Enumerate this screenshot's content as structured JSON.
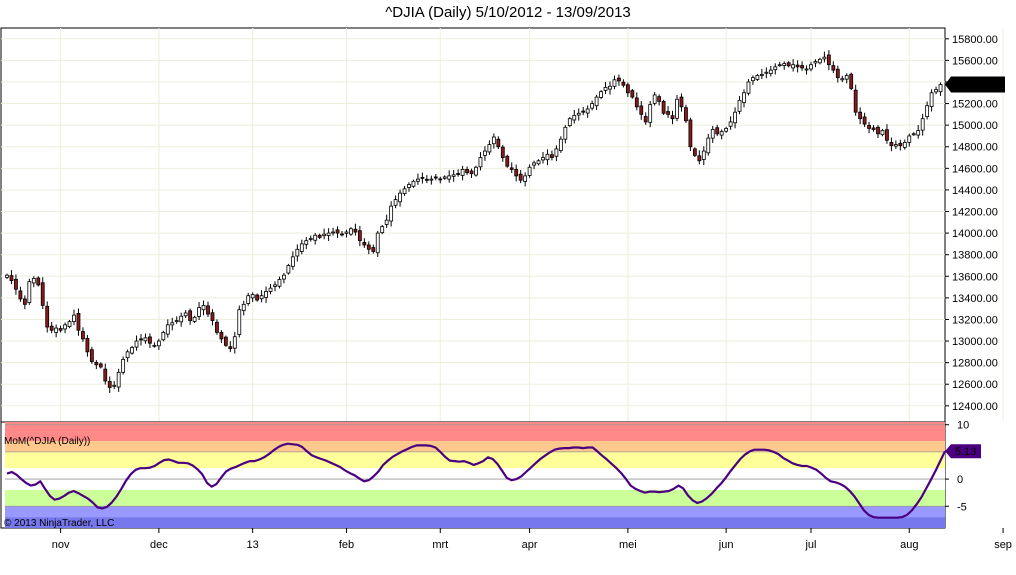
{
  "title": "^DJIA (Daily)  5/10/2012 - 13/09/2013",
  "chart_data": [
    {
      "type": "candlestick",
      "name": "^DJIA (Daily)",
      "y_ticks": [
        "15800.00",
        "15600.00",
        "15400.00",
        "15200.00",
        "15000.00",
        "14800.00",
        "14600.00",
        "14400.00",
        "14200.00",
        "14000.00",
        "13800.00",
        "13600.00",
        "13400.00",
        "13200.00",
        "13000.00",
        "12800.00",
        "12600.00",
        "12400.00"
      ],
      "ylim": [
        12250,
        15900
      ],
      "last_value_label": "15376.06",
      "last_value": 15376.06,
      "close_approx": [
        13610,
        13560,
        13480,
        13390,
        13340,
        13550,
        13580,
        13520,
        13330,
        13130,
        13100,
        13120,
        13100,
        13150,
        13180,
        13240,
        13100,
        13020,
        12900,
        12810,
        12780,
        12760,
        12630,
        12570,
        12590,
        12710,
        12830,
        12900,
        12940,
        13000,
        13010,
        13030,
        12980,
        12960,
        13000,
        13080,
        13150,
        13170,
        13190,
        13230,
        13260,
        13190,
        13220,
        13310,
        13330,
        13250,
        13190,
        13080,
        13020,
        12960,
        12930,
        13040,
        13290,
        13340,
        13420,
        13430,
        13380,
        13420,
        13460,
        13490,
        13520,
        13570,
        13610,
        13700,
        13780,
        13850,
        13900,
        13930,
        13950,
        13980,
        13960,
        13990,
        14000,
        14010,
        14000,
        13990,
        14010,
        14040,
        14010,
        13930,
        13890,
        13850,
        13830,
        14000,
        14060,
        14120,
        14250,
        14310,
        14370,
        14410,
        14450,
        14480,
        14500,
        14510,
        14490,
        14500,
        14510,
        14500,
        14520,
        14530,
        14540,
        14550,
        14590,
        14560,
        14550,
        14610,
        14700,
        14760,
        14820,
        14890,
        14800,
        14700,
        14620,
        14590,
        14530,
        14490,
        14530,
        14610,
        14650,
        14670,
        14700,
        14730,
        14700,
        14780,
        14870,
        14980,
        15060,
        15090,
        15110,
        15120,
        15150,
        15200,
        15260,
        15310,
        15350,
        15360,
        15420,
        15410,
        15370,
        15300,
        15260,
        15170,
        15100,
        15030,
        15190,
        15280,
        15220,
        15110,
        15100,
        15060,
        15240,
        15170,
        15040,
        14800,
        14720,
        14670,
        14760,
        14880,
        14960,
        14920,
        14940,
        14970,
        15030,
        15120,
        15230,
        15300,
        15400,
        15440,
        15460,
        15470,
        15490,
        15510,
        15540,
        15560,
        15570,
        15550,
        15560,
        15540,
        15530,
        15520,
        15560,
        15590,
        15610,
        15630,
        15560,
        15510,
        15440,
        15430,
        15460,
        15340,
        15120,
        15060,
        15010,
        14970,
        14960,
        14920,
        14950,
        14860,
        14810,
        14820,
        14810,
        14840,
        14900,
        14920,
        14950,
        15060,
        15180,
        15300,
        15330,
        15376
      ]
    },
    {
      "type": "line",
      "name": "MoM(^DJIA (Daily))",
      "legend_label": "MoM(^DJIA (Daily))",
      "y_ticks": [
        "10",
        "5",
        "0",
        "-5"
      ],
      "ylim": [
        -9,
        10.5
      ],
      "last_value_label": "5.13",
      "last_value": 5.13,
      "zones": [
        {
          "from": 7,
          "to": 10.5,
          "color": "#ff8888"
        },
        {
          "from": 5,
          "to": 7,
          "color": "#ffc88c"
        },
        {
          "from": 2,
          "to": 5,
          "color": "#ffff99"
        },
        {
          "from": -2,
          "to": 2,
          "color": "#ffffff"
        },
        {
          "from": -5,
          "to": -2,
          "color": "#ccff99"
        },
        {
          "from": -7,
          "to": -5,
          "color": "#9999ff"
        },
        {
          "from": -9,
          "to": -7,
          "color": "#7777ee"
        }
      ],
      "values": [
        1,
        1.3,
        0.8,
        0,
        -0.7,
        -1.2,
        -1,
        -0.4,
        -1.8,
        -3.1,
        -3.8,
        -3.6,
        -3.1,
        -2.5,
        -2.2,
        -2.6,
        -3.1,
        -3.6,
        -4.3,
        -5.2,
        -5.4,
        -5.1,
        -4.3,
        -3.2,
        -1.8,
        -0.3,
        0.9,
        1.7,
        2,
        2,
        2.1,
        2.4,
        3,
        3.5,
        3.6,
        3.3,
        3,
        3,
        2.9,
        2.5,
        1.8,
        0.9,
        -0.7,
        -1.4,
        -0.9,
        0.3,
        1.4,
        1.9,
        2.2,
        2.6,
        3,
        3.3,
        3.3,
        3.6,
        4,
        4.6,
        5.3,
        5.9,
        6.3,
        6.5,
        6.4,
        6.3,
        5.9,
        5.1,
        4.4,
        4,
        3.7,
        3.4,
        3,
        2.6,
        2.2,
        1.6,
        1.1,
        0.7,
        0.1,
        -0.4,
        -0.2,
        0.5,
        1.4,
        2.6,
        3.4,
        4.1,
        4.6,
        5.1,
        5.5,
        5.9,
        6.2,
        6.2,
        6.2,
        6.1,
        5.8,
        5,
        4.1,
        3.4,
        3.3,
        3.2,
        3.3,
        3,
        2.6,
        2.9,
        3.3,
        4,
        3.7,
        2.8,
        1.5,
        0.2,
        -0.2,
        0,
        0.5,
        1.3,
        2.1,
        2.9,
        3.7,
        4.3,
        4.9,
        5.4,
        5.6,
        5.7,
        5.7,
        5.8,
        5.8,
        5.7,
        5.8,
        5.8,
        5.1,
        4.3,
        3.6,
        2.8,
        2,
        1.1,
        0,
        -1.2,
        -1.8,
        -2.2,
        -2.5,
        -2.3,
        -2.3,
        -2.4,
        -2.3,
        -2.2,
        -1.8,
        -1.2,
        -1.7,
        -3,
        -3.9,
        -4.4,
        -4.1,
        -3.5,
        -2.7,
        -1.7,
        -0.8,
        0.3,
        1.5,
        2.6,
        3.7,
        4.5,
        5.1,
        5.4,
        5.4,
        5.4,
        5.3,
        5,
        4.6,
        3.9,
        3.4,
        2.9,
        2.6,
        2.4,
        2.4,
        2.1,
        1.7,
        1,
        0.2,
        -0.4,
        -0.6,
        -0.9,
        -1.4,
        -2.2,
        -3.2,
        -4.5,
        -5.8,
        -6.6,
        -7,
        -7.1,
        -7.1,
        -7.1,
        -7.1,
        -7.1,
        -7,
        -6.6,
        -5.8,
        -4.7,
        -3.4,
        -1.8,
        -0.2,
        1.5,
        3.3,
        5.13
      ]
    }
  ],
  "x_ticks": [
    "nov",
    "dec",
    "13",
    "feb",
    "mrt",
    "apr",
    "mei",
    "jun",
    "jul",
    "aug",
    "sep"
  ],
  "x_tick_index": [
    12,
    34,
    55,
    76,
    97,
    117,
    139,
    161,
    180,
    202,
    223
  ],
  "copyright": "© 2013 NinjaTrader, LLC",
  "colors": {
    "up_candle": "#ffffff",
    "down_candle": "#8b1a1a",
    "wick": "#000000",
    "indicator_line": "#4b0082",
    "last_value_bg": "#000000",
    "indicator_value_bg": "#4b0082"
  }
}
